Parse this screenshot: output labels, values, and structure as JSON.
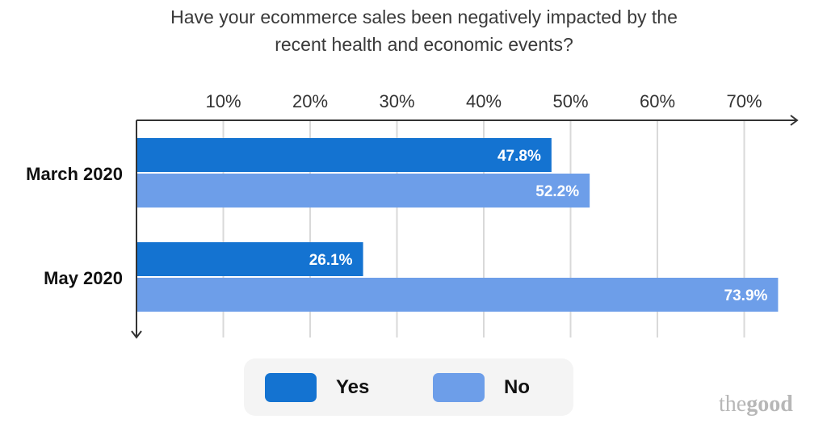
{
  "chart_data": {
    "type": "bar",
    "orientation": "horizontal",
    "title_lines": [
      "Have your ecommerce sales been negatively impacted by the",
      "recent health and economic events?"
    ],
    "categories": [
      "March 2020",
      "May 2020"
    ],
    "series": [
      {
        "name": "Yes",
        "values": [
          47.8,
          26.1
        ],
        "labels": [
          "47.8%",
          "26.1%"
        ],
        "color": "#1473d1"
      },
      {
        "name": "No",
        "values": [
          52.2,
          73.9
        ],
        "labels": [
          "52.2%",
          "73.9%"
        ],
        "color": "#6d9ee9"
      }
    ],
    "x_ticks": [
      10,
      20,
      30,
      40,
      50,
      60,
      70
    ],
    "x_tick_labels": [
      "10%",
      "20%",
      "30%",
      "40%",
      "50%",
      "60%",
      "70%"
    ],
    "xlim": [
      0,
      76
    ],
    "grid": true,
    "legend_position": "bottom-center"
  },
  "brand": {
    "light": "the",
    "bold": "good"
  }
}
